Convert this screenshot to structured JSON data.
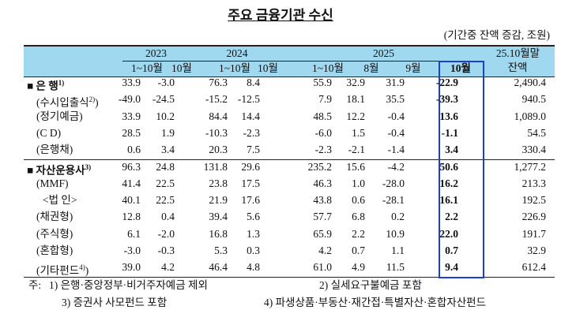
{
  "title": "주요 금융기관 수신",
  "subtitle": "(기간중 잔액 증감, 조원)",
  "header": {
    "row1": [
      "2023",
      "2024",
      "2025",
      "25.10월말"
    ],
    "row2": [
      "1~10월",
      "10월",
      "1~10월",
      "10월",
      "1~10월",
      "8월",
      "9월",
      "10월",
      "잔액"
    ]
  },
  "table": {
    "rows": [
      {
        "label": "■ 은 행",
        "sup": "1)",
        "values": [
          "33.9",
          "-3.0",
          "76.3",
          "8.4",
          "55.9",
          "32.9",
          "31.9",
          "-22.9",
          "2,490.4"
        ]
      },
      {
        "label": "(수시입출식",
        "sup": "2)",
        "after": ")",
        "values": [
          "-49.0",
          "-24.5",
          "-15.2",
          "-12.5",
          "7.9",
          "18.1",
          "35.5",
          "-39.3",
          "940.5"
        ]
      },
      {
        "label": "(정기예금)",
        "values": [
          "33.9",
          "10.2",
          "84.4",
          "14.4",
          "48.5",
          "12.2",
          "-0.4",
          "13.6",
          "1,089.0"
        ]
      },
      {
        "label": "(C D)",
        "values": [
          "28.5",
          "1.9",
          "-10.3",
          "-2.3",
          "-6.0",
          "1.5",
          "-0.4",
          "-1.1",
          "54.5"
        ]
      },
      {
        "label": "(은행채)",
        "values": [
          "0.6",
          "3.4",
          "20.3",
          "7.5",
          "-2.3",
          "-2.1",
          "-1.4",
          "3.4",
          "330.4"
        ]
      },
      {
        "label": "■ 자산운용사",
        "sup": "3)",
        "values": [
          "96.3",
          "24.8",
          "131.8",
          "29.6",
          "235.2",
          "15.6",
          "-4.2",
          "50.6",
          "1,277.2"
        ]
      },
      {
        "label": "(MMF)",
        "values": [
          "41.4",
          "22.5",
          "23.8",
          "17.5",
          "46.3",
          "1.0",
          "-28.0",
          "16.2",
          "213.3"
        ]
      },
      {
        "label": "<법 인>",
        "values": [
          "40.1",
          "22.5",
          "21.9",
          "17.6",
          "43.8",
          "0.6",
          "-28.1",
          "16.1",
          "192.5"
        ]
      },
      {
        "label": "(채권형)",
        "values": [
          "12.8",
          "0.4",
          "39.4",
          "5.6",
          "57.7",
          "6.8",
          "0.2",
          "2.2",
          "226.9"
        ]
      },
      {
        "label": "(주식형)",
        "values": [
          "6.1",
          "-2.0",
          "16.8",
          "1.3",
          "65.9",
          "2.2",
          "10.9",
          "22.0",
          "191.7"
        ]
      },
      {
        "label": "(혼합형)",
        "values": [
          "-3.0",
          "-0.3",
          "5.3",
          "0.3",
          "4.2",
          "0.7",
          "1.1",
          "0.7",
          "32.9"
        ]
      },
      {
        "label": "(기타펀드",
        "sup": "4)",
        "after": ")",
        "values": [
          "39.0",
          "4.2",
          "46.4",
          "4.8",
          "61.0",
          "4.9",
          "11.5",
          "9.4",
          "612.4"
        ]
      }
    ]
  },
  "notes": {
    "prefix": "주:",
    "items": [
      "1) 은행·중앙정부·비거주자예금 제외",
      "2) 실세요구불예금 포함",
      "3) 증권사 사모펀드 포함",
      "4) 파생상품·부동산·재간접·특별자산·혼합자산펀드"
    ]
  }
}
